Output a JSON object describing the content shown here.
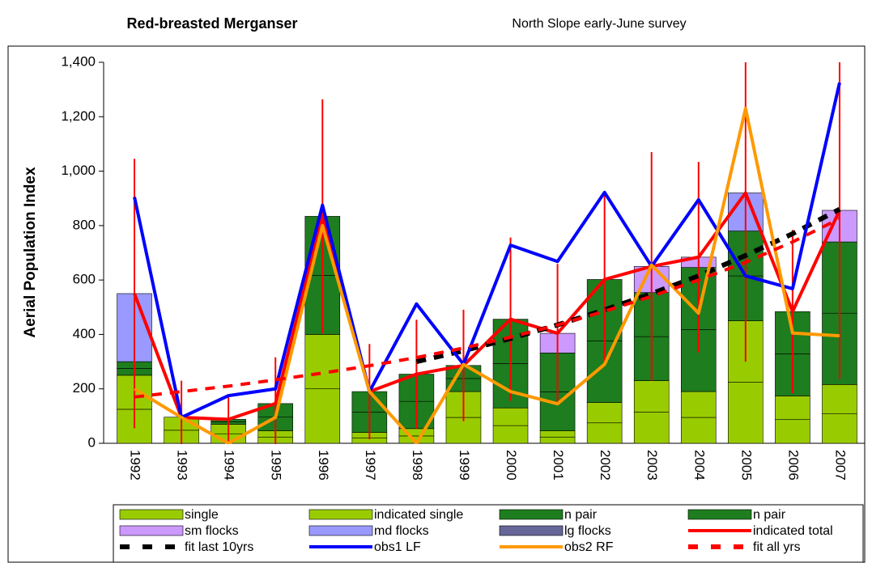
{
  "chart_data": {
    "type": "bar",
    "title": "Red-breasted Merganser",
    "subtitle": "North Slope early-June survey",
    "y_label": "Aerial Population Index",
    "categories": [
      "1992",
      "1993",
      "1994",
      "1995",
      "1996",
      "1997",
      "1998",
      "1999",
      "2000",
      "2001",
      "2002",
      "2003",
      "2004",
      "2005",
      "2006",
      "2007"
    ],
    "ylim": [
      0,
      1400
    ],
    "yticks": [
      0,
      200,
      400,
      600,
      800,
      {
        "value": 1000,
        "label": "1,000"
      },
      {
        "value": 1200,
        "label": "1,200"
      },
      {
        "value": 1400,
        "label": "1,400"
      }
    ],
    "series": [
      {
        "name": "single",
        "type": "bar",
        "color": "#99cc00",
        "values": [
          125,
          48,
          35,
          23,
          200,
          20,
          27,
          95,
          65,
          23,
          75,
          115,
          95,
          225,
          87,
          108
        ]
      },
      {
        "name": "indicated single",
        "type": "bar",
        "color": "#99cc00",
        "values": [
          125,
          48,
          35,
          23,
          200,
          20,
          27,
          95,
          65,
          23,
          75,
          115,
          95,
          225,
          87,
          108
        ]
      },
      {
        "name": "n pair",
        "type": "bar",
        "color": "#1e7d1e",
        "values": [
          25,
          0,
          9,
          50,
          217,
          75,
          100,
          48,
          163,
          143,
          226,
          162,
          228,
          165,
          155,
          262
        ]
      },
      {
        "name": "n pair",
        "type": "bar",
        "color": "#1e7d1e",
        "values": [
          25,
          0,
          9,
          50,
          217,
          75,
          100,
          48,
          163,
          143,
          226,
          162,
          228,
          165,
          155,
          262
        ]
      },
      {
        "name": "sm flocks",
        "type": "bar",
        "color": "#cc99ff",
        "values": [
          0,
          0,
          0,
          0,
          0,
          0,
          0,
          0,
          0,
          72,
          0,
          96,
          38,
          0,
          0,
          116
        ]
      },
      {
        "name": "md flocks",
        "type": "bar",
        "color": "#9999ff",
        "values": [
          250,
          0,
          0,
          0,
          0,
          0,
          0,
          0,
          0,
          0,
          0,
          0,
          0,
          140,
          0,
          0
        ]
      },
      {
        "name": "lg flocks",
        "type": "bar",
        "color": "#666699",
        "values": [
          0,
          0,
          0,
          0,
          0,
          0,
          0,
          0,
          0,
          0,
          0,
          0,
          0,
          0,
          0,
          0
        ]
      },
      {
        "name": "indicated total",
        "type": "line",
        "color": "#ff0000",
        "values": [
          550,
          95,
          88,
          146,
          834,
          190,
          254,
          286,
          456,
          404,
          602,
          650,
          684,
          920,
          484,
          856
        ],
        "errors": [
          495,
          135,
          90,
          170,
          430,
          175,
          200,
          205,
          300,
          255,
          315,
          420,
          350,
          620,
          300,
          620
        ]
      },
      {
        "name": "fit last 10yrs",
        "type": "line",
        "color": "#000000",
        "dash": true,
        "values": [
          null,
          null,
          null,
          null,
          null,
          null,
          300,
          340,
          385,
          435,
          490,
          550,
          615,
          690,
          770,
          860
        ]
      },
      {
        "name": "obs1 LF",
        "type": "line",
        "color": "#0000ff",
        "values": [
          905,
          95,
          175,
          200,
          875,
          190,
          512,
          290,
          728,
          668,
          922,
          650,
          895,
          615,
          568,
          1325
        ]
      },
      {
        "name": "obs2 RF",
        "type": "line",
        "color": "#ff9900",
        "values": [
          200,
          95,
          0,
          95,
          800,
          190,
          0,
          290,
          190,
          145,
          290,
          655,
          478,
          1230,
          405,
          395
        ]
      },
      {
        "name": "fit all yrs",
        "type": "line",
        "color": "#ff0000",
        "dash": true,
        "values": [
          170,
          190,
          210,
          233,
          258,
          285,
          315,
          350,
          390,
          435,
          485,
          540,
          600,
          665,
          740,
          825
        ]
      }
    ]
  }
}
